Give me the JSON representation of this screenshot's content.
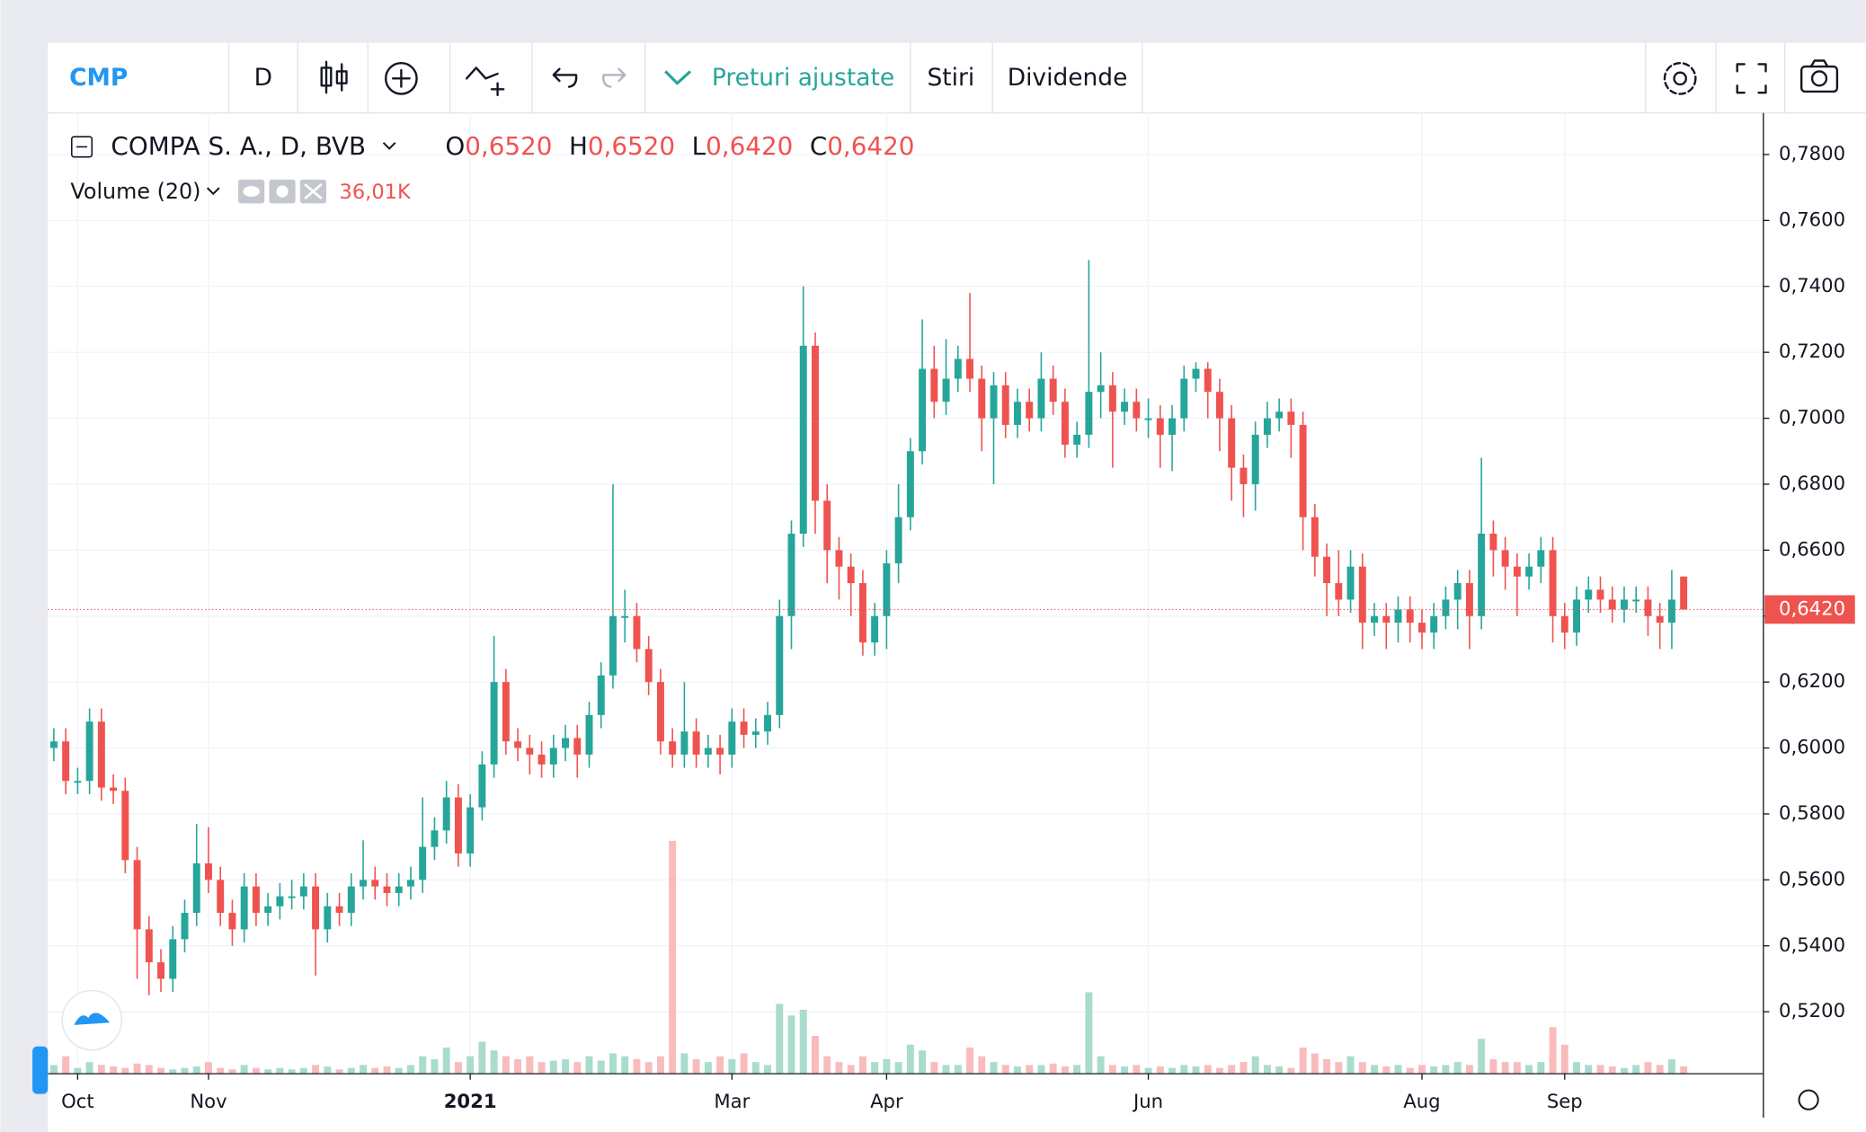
{
  "toolbar": {
    "symbol": "CMP",
    "interval": "D",
    "adjusted": "Preturi ajustate",
    "news": "Stiri",
    "dividends": "Dividende"
  },
  "legend": {
    "title": "COMPA S. A., D, BVB",
    "ohlc": [
      {
        "key": "O",
        "value": "0,6520"
      },
      {
        "key": "H",
        "value": "0,6520"
      },
      {
        "key": "L",
        "value": "0,6420"
      },
      {
        "key": "C",
        "value": "0,6420"
      }
    ],
    "volume_title": "Volume (20)",
    "volume_value": "36,01K"
  },
  "chart_data": {
    "type": "candlestick",
    "up_color": "#26a69a",
    "down_color": "#ef5350",
    "volume_up_color": "#a9dccd",
    "volume_down_color": "#f8bcbc",
    "grid": true,
    "xlim": [
      -0.5,
      143.7
    ],
    "xticks": [
      {
        "value": 2,
        "label": "Oct"
      },
      {
        "value": 13,
        "label": "Nov"
      },
      {
        "value": 35,
        "label": "2021"
      },
      {
        "value": 57,
        "label": "Mar"
      },
      {
        "value": 70,
        "label": "Apr"
      },
      {
        "value": 92,
        "label": "Jun"
      },
      {
        "value": 115,
        "label": "Aug"
      },
      {
        "value": 127,
        "label": "Sep"
      }
    ],
    "ylim": [
      0.5012,
      0.7926
    ],
    "yticks": [
      {
        "value": 0.52,
        "label": "0,5200"
      },
      {
        "value": 0.54,
        "label": "0,5400"
      },
      {
        "value": 0.56,
        "label": "0,5600"
      },
      {
        "value": 0.58,
        "label": "0,5800"
      },
      {
        "value": 0.6,
        "label": "0,6000"
      },
      {
        "value": 0.62,
        "label": "0,6200"
      },
      {
        "value": 0.64,
        "label": "0,6400"
      },
      {
        "value": 0.66,
        "label": "0,6600"
      },
      {
        "value": 0.68,
        "label": "0,6800"
      },
      {
        "value": 0.7,
        "label": "0,7000"
      },
      {
        "value": 0.72,
        "label": "0,7200"
      },
      {
        "value": 0.74,
        "label": "0,7400"
      },
      {
        "value": 0.76,
        "label": "0,7600"
      },
      {
        "value": 0.78,
        "label": "0,7800"
      }
    ],
    "last_price": {
      "value": 0.642,
      "label": "0,6420"
    },
    "volume_lim": [
      0,
      3300
    ],
    "open": [
      0.6,
      0.602,
      0.59,
      0.59,
      0.608,
      0.588,
      0.587,
      0.566,
      0.545,
      0.535,
      0.53,
      0.542,
      0.55,
      0.565,
      0.56,
      0.55,
      0.545,
      0.558,
      0.55,
      0.552,
      0.555,
      0.555,
      0.558,
      0.545,
      0.552,
      0.55,
      0.558,
      0.56,
      0.558,
      0.556,
      0.558,
      0.56,
      0.57,
      0.575,
      0.585,
      0.568,
      0.582,
      0.595,
      0.62,
      0.602,
      0.6,
      0.598,
      0.595,
      0.6,
      0.603,
      0.598,
      0.61,
      0.622,
      0.64,
      0.64,
      0.63,
      0.62,
      0.602,
      0.598,
      0.605,
      0.598,
      0.6,
      0.598,
      0.608,
      0.604,
      0.605,
      0.61,
      0.64,
      0.665,
      0.722,
      0.675,
      0.66,
      0.655,
      0.65,
      0.632,
      0.64,
      0.656,
      0.67,
      0.69,
      0.715,
      0.705,
      0.712,
      0.718,
      0.712,
      0.7,
      0.71,
      0.698,
      0.705,
      0.7,
      0.712,
      0.705,
      0.692,
      0.695,
      0.708,
      0.71,
      0.702,
      0.705,
      0.7,
      0.7,
      0.695,
      0.7,
      0.712,
      0.715,
      0.708,
      0.7,
      0.685,
      0.68,
      0.695,
      0.7,
      0.702,
      0.698,
      0.67,
      0.658,
      0.65,
      0.645,
      0.655,
      0.638,
      0.64,
      0.638,
      0.642,
      0.638,
      0.635,
      0.64,
      0.645,
      0.65,
      0.64,
      0.665,
      0.66,
      0.655,
      0.652,
      0.655,
      0.66,
      0.64,
      0.635,
      0.645,
      0.648,
      0.645,
      0.642,
      0.645,
      0.645,
      0.64,
      0.638,
      0.652
    ],
    "high": [
      0.606,
      0.606,
      0.594,
      0.612,
      0.612,
      0.592,
      0.591,
      0.57,
      0.549,
      0.539,
      0.546,
      0.554,
      0.577,
      0.576,
      0.564,
      0.554,
      0.562,
      0.562,
      0.556,
      0.559,
      0.56,
      0.562,
      0.562,
      0.556,
      0.556,
      0.562,
      0.572,
      0.564,
      0.562,
      0.562,
      0.564,
      0.585,
      0.579,
      0.59,
      0.589,
      0.586,
      0.599,
      0.634,
      0.624,
      0.606,
      0.604,
      0.602,
      0.604,
      0.607,
      0.607,
      0.614,
      0.626,
      0.68,
      0.648,
      0.644,
      0.634,
      0.624,
      0.606,
      0.62,
      0.609,
      0.604,
      0.604,
      0.612,
      0.612,
      0.609,
      0.614,
      0.645,
      0.669,
      0.74,
      0.726,
      0.68,
      0.664,
      0.659,
      0.654,
      0.644,
      0.66,
      0.68,
      0.694,
      0.73,
      0.722,
      0.724,
      0.722,
      0.738,
      0.716,
      0.714,
      0.714,
      0.709,
      0.709,
      0.72,
      0.716,
      0.709,
      0.699,
      0.748,
      0.72,
      0.714,
      0.709,
      0.709,
      0.706,
      0.704,
      0.704,
      0.716,
      0.717,
      0.717,
      0.712,
      0.704,
      0.689,
      0.699,
      0.705,
      0.706,
      0.706,
      0.702,
      0.674,
      0.662,
      0.66,
      0.66,
      0.659,
      0.644,
      0.644,
      0.646,
      0.646,
      0.642,
      0.644,
      0.649,
      0.654,
      0.654,
      0.688,
      0.669,
      0.664,
      0.659,
      0.659,
      0.664,
      0.664,
      0.644,
      0.649,
      0.652,
      0.652,
      0.649,
      0.649,
      0.649,
      0.649,
      0.644,
      0.654,
      0.652
    ],
    "low": [
      0.596,
      0.586,
      0.586,
      0.586,
      0.584,
      0.583,
      0.562,
      0.53,
      0.525,
      0.526,
      0.526,
      0.538,
      0.546,
      0.556,
      0.546,
      0.54,
      0.541,
      0.546,
      0.546,
      0.548,
      0.551,
      0.551,
      0.531,
      0.541,
      0.546,
      0.546,
      0.554,
      0.554,
      0.552,
      0.552,
      0.554,
      0.556,
      0.566,
      0.571,
      0.564,
      0.564,
      0.578,
      0.591,
      0.598,
      0.596,
      0.592,
      0.591,
      0.591,
      0.596,
      0.591,
      0.594,
      0.606,
      0.618,
      0.632,
      0.626,
      0.616,
      0.598,
      0.594,
      0.594,
      0.594,
      0.594,
      0.592,
      0.594,
      0.6,
      0.6,
      0.601,
      0.606,
      0.63,
      0.661,
      0.665,
      0.65,
      0.645,
      0.64,
      0.628,
      0.628,
      0.63,
      0.65,
      0.666,
      0.686,
      0.7,
      0.701,
      0.708,
      0.708,
      0.69,
      0.68,
      0.694,
      0.694,
      0.696,
      0.696,
      0.701,
      0.688,
      0.688,
      0.691,
      0.7,
      0.685,
      0.698,
      0.696,
      0.694,
      0.685,
      0.684,
      0.696,
      0.708,
      0.7,
      0.69,
      0.675,
      0.67,
      0.672,
      0.691,
      0.696,
      0.688,
      0.66,
      0.652,
      0.64,
      0.64,
      0.641,
      0.63,
      0.634,
      0.63,
      0.632,
      0.632,
      0.63,
      0.63,
      0.636,
      0.636,
      0.63,
      0.636,
      0.652,
      0.648,
      0.64,
      0.648,
      0.65,
      0.632,
      0.63,
      0.631,
      0.641,
      0.641,
      0.638,
      0.638,
      0.641,
      0.634,
      0.63,
      0.63,
      0.642
    ],
    "close": [
      0.602,
      0.59,
      0.59,
      0.608,
      0.588,
      0.587,
      0.566,
      0.545,
      0.535,
      0.53,
      0.542,
      0.55,
      0.565,
      0.56,
      0.55,
      0.545,
      0.558,
      0.55,
      0.552,
      0.555,
      0.555,
      0.558,
      0.545,
      0.552,
      0.55,
      0.558,
      0.56,
      0.558,
      0.556,
      0.558,
      0.56,
      0.57,
      0.575,
      0.585,
      0.568,
      0.582,
      0.595,
      0.62,
      0.602,
      0.6,
      0.598,
      0.595,
      0.6,
      0.603,
      0.598,
      0.61,
      0.622,
      0.64,
      0.64,
      0.63,
      0.62,
      0.602,
      0.598,
      0.605,
      0.598,
      0.6,
      0.598,
      0.608,
      0.604,
      0.605,
      0.61,
      0.64,
      0.665,
      0.722,
      0.675,
      0.66,
      0.655,
      0.65,
      0.632,
      0.64,
      0.656,
      0.67,
      0.69,
      0.715,
      0.705,
      0.712,
      0.718,
      0.712,
      0.7,
      0.71,
      0.698,
      0.705,
      0.7,
      0.712,
      0.705,
      0.692,
      0.695,
      0.708,
      0.71,
      0.702,
      0.705,
      0.7,
      0.7,
      0.695,
      0.7,
      0.712,
      0.715,
      0.708,
      0.7,
      0.685,
      0.68,
      0.695,
      0.7,
      0.702,
      0.698,
      0.67,
      0.658,
      0.65,
      0.645,
      0.655,
      0.638,
      0.64,
      0.638,
      0.642,
      0.638,
      0.635,
      0.64,
      0.645,
      0.65,
      0.64,
      0.665,
      0.66,
      0.655,
      0.652,
      0.655,
      0.66,
      0.64,
      0.635,
      0.645,
      0.648,
      0.645,
      0.642,
      0.645,
      0.645,
      0.64,
      0.638,
      0.645,
      0.642
    ],
    "volume": [
      30,
      60,
      20,
      40,
      30,
      25,
      20,
      35,
      30,
      20,
      15,
      20,
      25,
      40,
      20,
      15,
      30,
      20,
      15,
      20,
      15,
      20,
      30,
      25,
      15,
      20,
      30,
      20,
      25,
      20,
      30,
      60,
      50,
      90,
      40,
      60,
      110,
      80,
      60,
      50,
      60,
      40,
      45,
      50,
      40,
      60,
      45,
      70,
      60,
      50,
      40,
      60,
      800,
      70,
      50,
      40,
      60,
      50,
      70,
      40,
      30,
      240,
      200,
      220,
      130,
      60,
      40,
      30,
      60,
      40,
      50,
      40,
      100,
      80,
      40,
      30,
      30,
      90,
      60,
      40,
      30,
      25,
      30,
      30,
      35,
      25,
      30,
      280,
      60,
      30,
      25,
      30,
      20,
      25,
      20,
      30,
      25,
      30,
      20,
      30,
      40,
      60,
      30,
      25,
      20,
      90,
      70,
      50,
      40,
      60,
      40,
      30,
      25,
      30,
      20,
      30,
      25,
      30,
      40,
      30,
      120,
      50,
      40,
      40,
      30,
      40,
      160,
      100,
      40,
      30,
      30,
      25,
      20,
      30,
      40,
      30,
      50,
      25
    ]
  }
}
